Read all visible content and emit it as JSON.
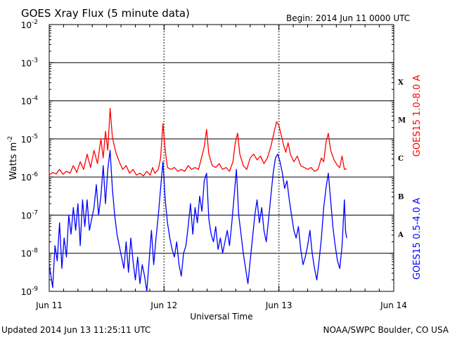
{
  "chart_data": {
    "type": "line",
    "title": "GOES Xray Flux (5 minute data)",
    "begin_label": "Begin:  2014 Jun 11 0000 UTC",
    "xlabel": "Universal Time",
    "ylabel": "Watts m",
    "ylabel_exp": "-2",
    "y_scale": "log",
    "ylim": [
      1e-09,
      0.01
    ],
    "y_ticks": [
      {
        "exp": -2,
        "label": "10",
        "sup": "-2"
      },
      {
        "exp": -3,
        "label": "10",
        "sup": "-3"
      },
      {
        "exp": -4,
        "label": "10",
        "sup": "-4"
      },
      {
        "exp": -5,
        "label": "10",
        "sup": "-5"
      },
      {
        "exp": -6,
        "label": "10",
        "sup": "-6"
      },
      {
        "exp": -7,
        "label": "10",
        "sup": "-7"
      },
      {
        "exp": -8,
        "label": "10",
        "sup": "-8"
      },
      {
        "exp": -9,
        "label": "10",
        "sup": "-9"
      }
    ],
    "x_ticks": [
      "Jun 11",
      "Jun 12",
      "Jun 13",
      "Jun 14"
    ],
    "xlim_days": [
      0,
      3
    ],
    "flare_classes": [
      {
        "label": "X",
        "exp": -3.5
      },
      {
        "label": "M",
        "exp": -4.5
      },
      {
        "label": "C",
        "exp": -5.5
      },
      {
        "label": "B",
        "exp": -6.5
      },
      {
        "label": "A",
        "exp": -7.5
      }
    ],
    "grid_exps": [
      -3,
      -4,
      -5,
      -6,
      -7,
      -8
    ],
    "series": [
      {
        "name": "GOES15 1.0-8.0 A",
        "color": "#ff0000",
        "points": [
          [
            0.0,
            -5.95
          ],
          [
            0.03,
            -5.88
          ],
          [
            0.06,
            -5.92
          ],
          [
            0.09,
            -5.8
          ],
          [
            0.12,
            -5.93
          ],
          [
            0.15,
            -5.85
          ],
          [
            0.18,
            -5.9
          ],
          [
            0.21,
            -5.7
          ],
          [
            0.24,
            -5.88
          ],
          [
            0.27,
            -5.6
          ],
          [
            0.3,
            -5.8
          ],
          [
            0.33,
            -5.4
          ],
          [
            0.36,
            -5.75
          ],
          [
            0.39,
            -5.3
          ],
          [
            0.42,
            -5.65
          ],
          [
            0.45,
            -5.0
          ],
          [
            0.47,
            -5.5
          ],
          [
            0.49,
            -4.8
          ],
          [
            0.51,
            -5.3
          ],
          [
            0.53,
            -4.2
          ],
          [
            0.55,
            -4.95
          ],
          [
            0.58,
            -5.35
          ],
          [
            0.61,
            -5.6
          ],
          [
            0.64,
            -5.8
          ],
          [
            0.67,
            -5.7
          ],
          [
            0.7,
            -5.9
          ],
          [
            0.73,
            -5.8
          ],
          [
            0.76,
            -5.95
          ],
          [
            0.79,
            -5.9
          ],
          [
            0.82,
            -5.97
          ],
          [
            0.85,
            -5.85
          ],
          [
            0.88,
            -5.95
          ],
          [
            0.9,
            -5.75
          ],
          [
            0.92,
            -5.9
          ],
          [
            0.95,
            -5.8
          ],
          [
            0.97,
            -5.5
          ],
          [
            0.99,
            -4.6
          ],
          [
            1.01,
            -5.3
          ],
          [
            1.03,
            -5.75
          ],
          [
            1.06,
            -5.8
          ],
          [
            1.09,
            -5.75
          ],
          [
            1.12,
            -5.85
          ],
          [
            1.15,
            -5.8
          ],
          [
            1.18,
            -5.85
          ],
          [
            1.21,
            -5.7
          ],
          [
            1.24,
            -5.8
          ],
          [
            1.27,
            -5.75
          ],
          [
            1.3,
            -5.8
          ],
          [
            1.33,
            -5.45
          ],
          [
            1.35,
            -5.2
          ],
          [
            1.37,
            -4.75
          ],
          [
            1.39,
            -5.4
          ],
          [
            1.42,
            -5.7
          ],
          [
            1.45,
            -5.75
          ],
          [
            1.48,
            -5.65
          ],
          [
            1.51,
            -5.8
          ],
          [
            1.54,
            -5.75
          ],
          [
            1.57,
            -5.85
          ],
          [
            1.6,
            -5.6
          ],
          [
            1.62,
            -5.1
          ],
          [
            1.64,
            -4.85
          ],
          [
            1.66,
            -5.4
          ],
          [
            1.69,
            -5.7
          ],
          [
            1.72,
            -5.8
          ],
          [
            1.75,
            -5.5
          ],
          [
            1.78,
            -5.4
          ],
          [
            1.81,
            -5.55
          ],
          [
            1.84,
            -5.45
          ],
          [
            1.87,
            -5.65
          ],
          [
            1.9,
            -5.5
          ],
          [
            1.93,
            -5.2
          ],
          [
            1.96,
            -4.8
          ],
          [
            1.98,
            -4.55
          ],
          [
            2.0,
            -4.65
          ],
          [
            2.02,
            -4.9
          ],
          [
            2.04,
            -5.15
          ],
          [
            2.06,
            -5.35
          ],
          [
            2.08,
            -5.1
          ],
          [
            2.1,
            -5.4
          ],
          [
            2.13,
            -5.6
          ],
          [
            2.16,
            -5.45
          ],
          [
            2.19,
            -5.7
          ],
          [
            2.22,
            -5.75
          ],
          [
            2.25,
            -5.8
          ],
          [
            2.28,
            -5.75
          ],
          [
            2.31,
            -5.85
          ],
          [
            2.34,
            -5.8
          ],
          [
            2.37,
            -5.5
          ],
          [
            2.39,
            -5.6
          ],
          [
            2.41,
            -5.1
          ],
          [
            2.43,
            -4.85
          ],
          [
            2.45,
            -5.3
          ],
          [
            2.48,
            -5.55
          ],
          [
            2.51,
            -5.7
          ],
          [
            2.53,
            -5.75
          ],
          [
            2.55,
            -5.45
          ],
          [
            2.57,
            -5.8
          ],
          [
            2.59,
            -5.78
          ]
        ]
      },
      {
        "name": "GOES15 0.5-4.0 A",
        "color": "#0000ff",
        "points": [
          [
            0.0,
            -8.3
          ],
          [
            0.02,
            -8.7
          ],
          [
            0.03,
            -8.9
          ],
          [
            0.05,
            -7.8
          ],
          [
            0.07,
            -8.2
          ],
          [
            0.09,
            -7.2
          ],
          [
            0.11,
            -8.4
          ],
          [
            0.13,
            -7.6
          ],
          [
            0.15,
            -8.1
          ],
          [
            0.17,
            -7.0
          ],
          [
            0.19,
            -7.5
          ],
          [
            0.21,
            -6.8
          ],
          [
            0.23,
            -7.4
          ],
          [
            0.25,
            -6.7
          ],
          [
            0.27,
            -7.8
          ],
          [
            0.29,
            -6.6
          ],
          [
            0.31,
            -7.3
          ],
          [
            0.33,
            -6.6
          ],
          [
            0.35,
            -7.4
          ],
          [
            0.37,
            -7.1
          ],
          [
            0.39,
            -6.8
          ],
          [
            0.41,
            -6.2
          ],
          [
            0.43,
            -7.0
          ],
          [
            0.45,
            -6.5
          ],
          [
            0.47,
            -5.7
          ],
          [
            0.49,
            -6.7
          ],
          [
            0.51,
            -5.8
          ],
          [
            0.53,
            -5.3
          ],
          [
            0.55,
            -6.3
          ],
          [
            0.57,
            -7.0
          ],
          [
            0.59,
            -7.5
          ],
          [
            0.61,
            -7.8
          ],
          [
            0.63,
            -8.1
          ],
          [
            0.65,
            -8.4
          ],
          [
            0.67,
            -7.7
          ],
          [
            0.69,
            -8.5
          ],
          [
            0.71,
            -7.6
          ],
          [
            0.73,
            -8.2
          ],
          [
            0.75,
            -8.7
          ],
          [
            0.77,
            -8.1
          ],
          [
            0.79,
            -8.8
          ],
          [
            0.81,
            -8.3
          ],
          [
            0.83,
            -8.6
          ],
          [
            0.85,
            -9.0
          ],
          [
            0.87,
            -8.2
          ],
          [
            0.89,
            -7.4
          ],
          [
            0.91,
            -8.3
          ],
          [
            0.93,
            -7.6
          ],
          [
            0.95,
            -7.0
          ],
          [
            0.97,
            -6.3
          ],
          [
            0.99,
            -5.6
          ],
          [
            1.01,
            -6.6
          ],
          [
            1.03,
            -7.2
          ],
          [
            1.05,
            -7.6
          ],
          [
            1.07,
            -7.9
          ],
          [
            1.09,
            -8.1
          ],
          [
            1.11,
            -7.7
          ],
          [
            1.13,
            -8.3
          ],
          [
            1.15,
            -8.6
          ],
          [
            1.17,
            -8.0
          ],
          [
            1.19,
            -7.8
          ],
          [
            1.21,
            -7.3
          ],
          [
            1.23,
            -6.7
          ],
          [
            1.25,
            -7.5
          ],
          [
            1.27,
            -6.8
          ],
          [
            1.29,
            -7.2
          ],
          [
            1.31,
            -6.5
          ],
          [
            1.33,
            -6.9
          ],
          [
            1.35,
            -6.1
          ],
          [
            1.37,
            -5.9
          ],
          [
            1.39,
            -7.1
          ],
          [
            1.41,
            -7.5
          ],
          [
            1.43,
            -7.7
          ],
          [
            1.45,
            -7.3
          ],
          [
            1.47,
            -7.9
          ],
          [
            1.49,
            -7.6
          ],
          [
            1.51,
            -8.0
          ],
          [
            1.53,
            -7.7
          ],
          [
            1.55,
            -7.4
          ],
          [
            1.57,
            -7.8
          ],
          [
            1.59,
            -7.2
          ],
          [
            1.61,
            -6.5
          ],
          [
            1.63,
            -5.8
          ],
          [
            1.65,
            -7.0
          ],
          [
            1.67,
            -7.5
          ],
          [
            1.69,
            -8.0
          ],
          [
            1.71,
            -8.4
          ],
          [
            1.73,
            -8.8
          ],
          [
            1.75,
            -8.2
          ],
          [
            1.77,
            -7.6
          ],
          [
            1.79,
            -7.0
          ],
          [
            1.81,
            -6.6
          ],
          [
            1.83,
            -7.2
          ],
          [
            1.85,
            -6.8
          ],
          [
            1.87,
            -7.4
          ],
          [
            1.89,
            -7.7
          ],
          [
            1.91,
            -7.1
          ],
          [
            1.93,
            -6.5
          ],
          [
            1.95,
            -5.9
          ],
          [
            1.97,
            -5.5
          ],
          [
            1.99,
            -5.4
          ],
          [
            2.01,
            -5.6
          ],
          [
            2.03,
            -5.9
          ],
          [
            2.05,
            -6.3
          ],
          [
            2.07,
            -6.1
          ],
          [
            2.09,
            -6.6
          ],
          [
            2.11,
            -7.0
          ],
          [
            2.13,
            -7.4
          ],
          [
            2.15,
            -7.6
          ],
          [
            2.17,
            -7.3
          ],
          [
            2.19,
            -7.9
          ],
          [
            2.21,
            -8.3
          ],
          [
            2.23,
            -8.1
          ],
          [
            2.25,
            -7.8
          ],
          [
            2.27,
            -7.4
          ],
          [
            2.29,
            -8.0
          ],
          [
            2.31,
            -8.4
          ],
          [
            2.33,
            -8.7
          ],
          [
            2.35,
            -8.2
          ],
          [
            2.37,
            -7.6
          ],
          [
            2.39,
            -6.8
          ],
          [
            2.41,
            -6.3
          ],
          [
            2.43,
            -5.9
          ],
          [
            2.45,
            -6.6
          ],
          [
            2.47,
            -7.3
          ],
          [
            2.49,
            -7.8
          ],
          [
            2.51,
            -8.2
          ],
          [
            2.53,
            -8.4
          ],
          [
            2.55,
            -7.8
          ],
          [
            2.57,
            -6.6
          ],
          [
            2.58,
            -7.4
          ],
          [
            2.59,
            -7.6
          ]
        ]
      }
    ],
    "updated_text": "Updated 2014 Jun 13 11:25:11 UTC",
    "source_text": "NOAA/SWPC Boulder, CO USA"
  }
}
